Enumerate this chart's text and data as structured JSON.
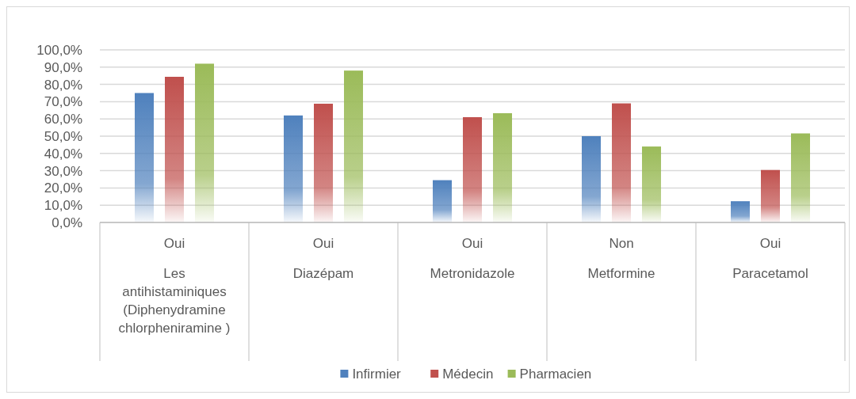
{
  "chart_data": {
    "type": "bar",
    "categories": [
      "Oui\nLes\nantihistaminiques\n(Diphenydramine\nchlorpheniramine )",
      "Oui\nDiazépam",
      "Oui\nMetronidazole",
      "Non\nMetformine",
      "Oui\nParacetamol"
    ],
    "series": [
      {
        "name": "Infirmier",
        "color": "#4f81bd",
        "values": [
          75,
          62,
          24.5,
          50,
          12.3
        ]
      },
      {
        "name": "Médecin",
        "color": "#c0504d",
        "values": [
          84.4,
          68.8,
          61,
          69,
          30.4
        ]
      },
      {
        "name": "Pharmacien",
        "color": "#9bbb59",
        "values": [
          92,
          88,
          63.3,
          44,
          51.6
        ]
      }
    ],
    "ylim": [
      0,
      100
    ],
    "yticks": [
      {
        "value": 0,
        "label": "0,0%"
      },
      {
        "value": 10,
        "label": "10,0%"
      },
      {
        "value": 20,
        "label": "20,0%"
      },
      {
        "value": 30,
        "label": "30,0%"
      },
      {
        "value": 40,
        "label": "40,0%"
      },
      {
        "value": 50,
        "label": "50,0%"
      },
      {
        "value": 60,
        "label": "60,0%"
      },
      {
        "value": 70,
        "label": "70,0%"
      },
      {
        "value": 80,
        "label": "80,0%"
      },
      {
        "value": 90,
        "label": "90,0%"
      },
      {
        "value": 100,
        "label": "100,0%"
      }
    ],
    "grid": "y",
    "legend": "bottom"
  }
}
